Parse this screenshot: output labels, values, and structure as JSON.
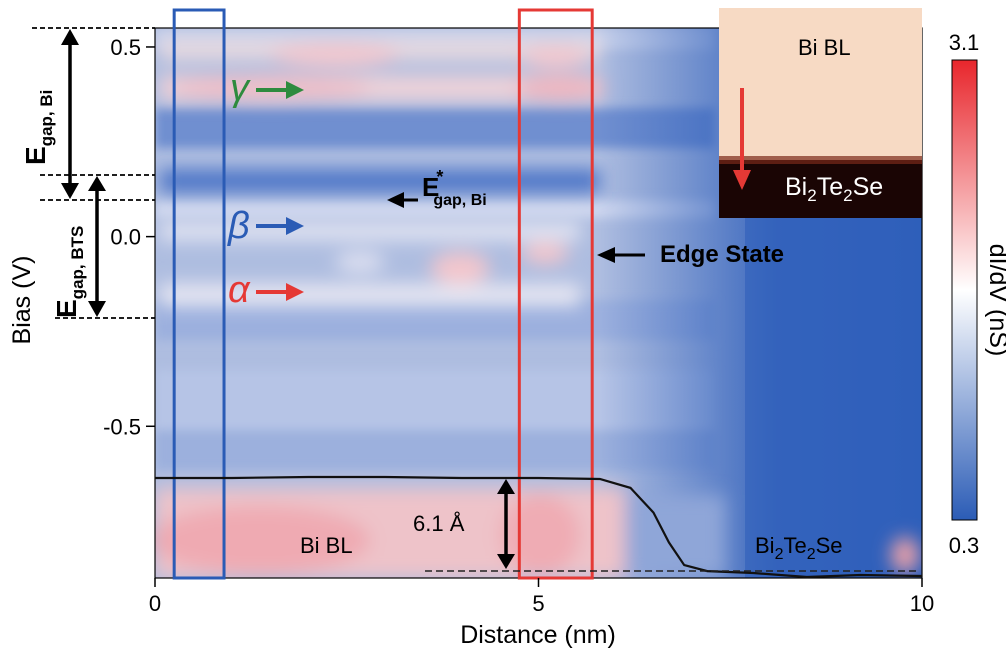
{
  "chart_data": {
    "type": "heatmap",
    "title": "",
    "xlabel": "Distance (nm)",
    "ylabel": "Bias (V)",
    "xlim": [
      0,
      10
    ],
    "ylim": [
      -0.9,
      0.55
    ],
    "x_ticks": [
      0,
      5,
      10
    ],
    "y_ticks": [
      0.5,
      0.0,
      -0.5
    ],
    "x_tick_labels": [
      "0",
      "5",
      "10"
    ],
    "y_tick_labels": [
      "0.5",
      "0.0",
      "-0.5"
    ],
    "colorbar": {
      "label": "dI/dV (nS)",
      "min": 0.3,
      "max": 3.1,
      "min_label": "0.3",
      "max_label": "3.1",
      "colors": [
        "#2b5cb6",
        "#ffffff",
        "#e8262c"
      ]
    },
    "bands": [
      {
        "symbol": "γ",
        "bias": 0.39,
        "color": "#2e8b3e"
      },
      {
        "symbol": "β",
        "bias": 0.03,
        "color": "#2a5bb5"
      },
      {
        "symbol": "α",
        "bias": -0.15,
        "color": "#e53935"
      }
    ],
    "gaps": [
      {
        "label": "E",
        "subscript": "gap, Bi",
        "from": 0.17,
        "to": 0.55
      },
      {
        "label": "E",
        "subscript": "gap, BTS",
        "from": -0.22,
        "to": 0.17
      }
    ],
    "annotations": {
      "e_star": {
        "main": "E",
        "sup": "*",
        "sub": "gap, Bi",
        "bias": 0.095,
        "distance": 3.0
      },
      "edge_state": {
        "text": "Edge State"
      },
      "step_height": "6.1 Å",
      "bi_bl": "Bi BL",
      "bts_main": "Bi",
      "bts_sub1": "2",
      "bts_mid": "Te",
      "bts_sub2": "2",
      "bts_end": "Se"
    },
    "highlight_boxes": [
      {
        "x_from": 0.25,
        "x_to": 0.9,
        "color": "#2a5bb5"
      },
      {
        "x_from": 4.75,
        "x_to": 5.7,
        "color": "#e53935"
      }
    ],
    "inset": {
      "top_label": "Bi BL",
      "top_color": "#f8dcc4",
      "bottom_color": "#1a0504"
    },
    "height_profile": {
      "x": [
        0,
        1,
        2,
        3,
        4,
        5,
        5.8,
        6.2,
        6.5,
        6.7,
        6.9,
        7.2,
        7.8,
        8.5,
        9.2,
        10
      ],
      "level": [
        1.0,
        1.0,
        1.01,
        1.01,
        1.0,
        1.0,
        0.99,
        0.9,
        0.65,
        0.35,
        0.12,
        0.06,
        0.04,
        0.0,
        0.02,
        0.01
      ]
    }
  }
}
